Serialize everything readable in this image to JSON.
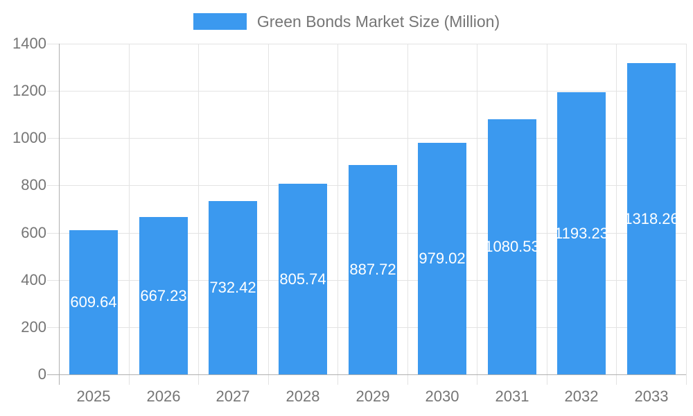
{
  "colors": {
    "bar": "#3b99ef",
    "gridline": "#e3e3e3",
    "axis_line": "#b0b0b0",
    "axis_text": "#757575",
    "value_label_text": "#ffffff",
    "background": "#ffffff"
  },
  "chart_data": {
    "type": "bar",
    "title": "Green Bonds Market Size (Million)",
    "categories": [
      "2025",
      "2026",
      "2027",
      "2028",
      "2029",
      "2030",
      "2031",
      "2032",
      "2033"
    ],
    "values": [
      609.64,
      667.23,
      732.42,
      805.74,
      887.72,
      979.02,
      1080.53,
      1193.23,
      1318.26
    ],
    "series": [
      {
        "name": "Green Bonds Market Size (Million)",
        "values": [
          609.64,
          667.23,
          732.42,
          805.74,
          887.72,
          979.02,
          1080.53,
          1193.23,
          1318.26
        ]
      }
    ],
    "xlabel": "",
    "ylabel": "",
    "ylim": [
      0,
      1400
    ],
    "yticks": [
      0,
      200,
      400,
      600,
      800,
      1000,
      1200,
      1400
    ],
    "grid": true,
    "legend_position": "top-center",
    "value_labels": "inside-middle",
    "value_label_decimals": 2
  }
}
